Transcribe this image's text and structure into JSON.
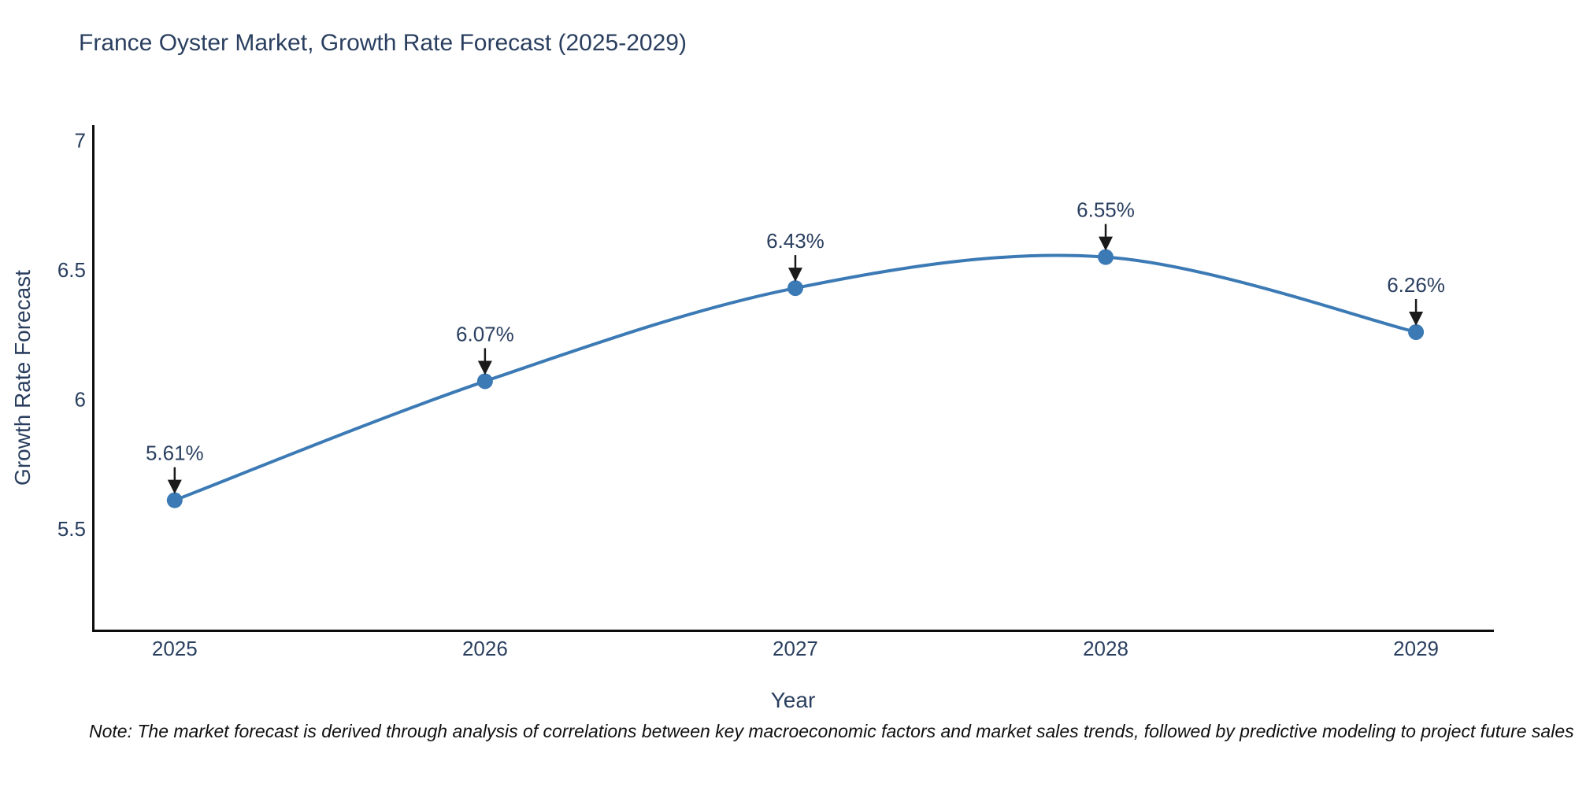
{
  "title": "France Oyster Market, Growth Rate Forecast (2025-2029)",
  "note": "Note: The market forecast is derived through analysis of correlations between key macroeconomic factors and market sales trends, followed by predictive modeling to project future sales",
  "chart_data": {
    "type": "line",
    "title": "France Oyster Market, Growth Rate Forecast (2025-2029)",
    "xlabel": "Year",
    "ylabel": "Growth Rate Forecast",
    "categories": [
      2025,
      2026,
      2027,
      2028,
      2029
    ],
    "values": [
      5.61,
      6.07,
      6.43,
      6.55,
      6.26
    ],
    "point_labels": [
      "5.61%",
      "6.07%",
      "6.43%",
      "6.55%",
      "6.26%"
    ],
    "xtick_labels": [
      "2025",
      "2026",
      "2027",
      "2028",
      "2029"
    ],
    "ytick_values": [
      5.5,
      6,
      6.5,
      7
    ],
    "ytick_labels": [
      "5.5",
      "6",
      "6.5",
      "7"
    ],
    "xlim": [
      2024.734,
      2029.251
    ],
    "ylim": [
      5.107,
      7.06
    ],
    "grid": false,
    "legend": "none",
    "line_shape": "spline",
    "colors": {
      "line": "#3c7ab5",
      "marker": "#3c7ab5",
      "arrow": "#1a1a1a",
      "text": "#2a3f5f",
      "tick_text": "#2a3f5f",
      "spine": "#0d0d0d"
    }
  }
}
